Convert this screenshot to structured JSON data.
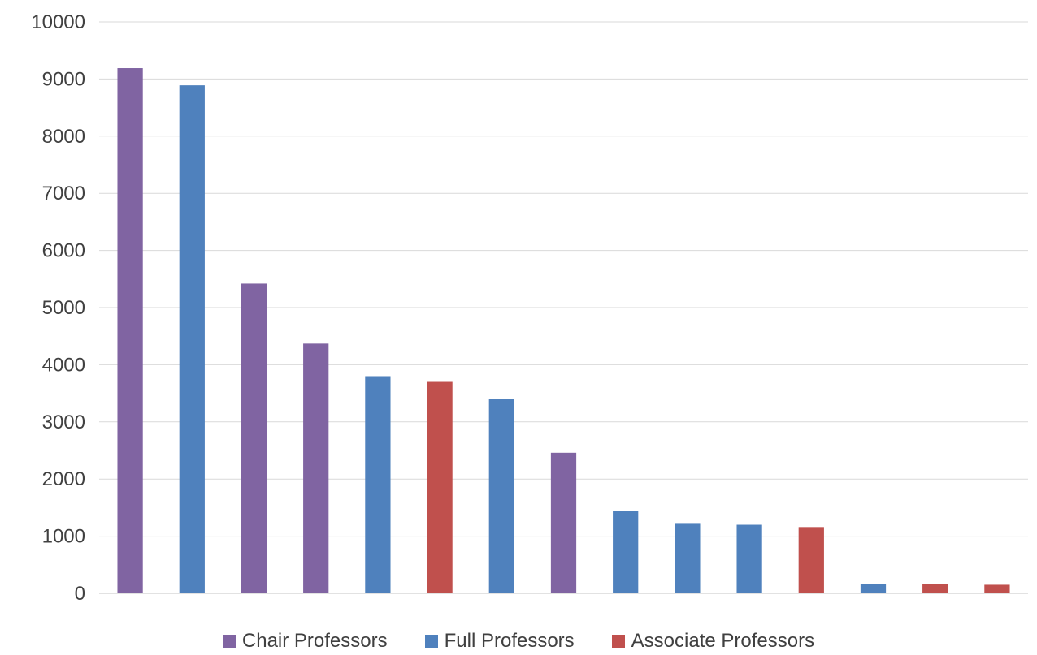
{
  "chart_data": {
    "type": "bar",
    "title": "",
    "xlabel": "",
    "ylabel": "",
    "ylim": [
      0,
      10000
    ],
    "yticks": [
      0,
      1000,
      2000,
      3000,
      4000,
      5000,
      6000,
      7000,
      8000,
      9000,
      10000
    ],
    "grid": true,
    "legend_position": "bottom",
    "series": [
      {
        "name": "Chair Professors",
        "color": "#8064a2"
      },
      {
        "name": "Full Professors",
        "color": "#4f81bd"
      },
      {
        "name": "Associate Professors",
        "color": "#c0504d"
      }
    ],
    "bars": [
      {
        "series": 0,
        "value": 9190
      },
      {
        "series": 1,
        "value": 8890
      },
      {
        "series": 0,
        "value": 5420
      },
      {
        "series": 0,
        "value": 4370
      },
      {
        "series": 1,
        "value": 3800
      },
      {
        "series": 2,
        "value": 3700
      },
      {
        "series": 1,
        "value": 3400
      },
      {
        "series": 0,
        "value": 2460
      },
      {
        "series": 1,
        "value": 1440
      },
      {
        "series": 1,
        "value": 1230
      },
      {
        "series": 1,
        "value": 1200
      },
      {
        "series": 2,
        "value": 1160
      },
      {
        "series": 1,
        "value": 170
      },
      {
        "series": 2,
        "value": 160
      },
      {
        "series": 2,
        "value": 150
      }
    ]
  }
}
